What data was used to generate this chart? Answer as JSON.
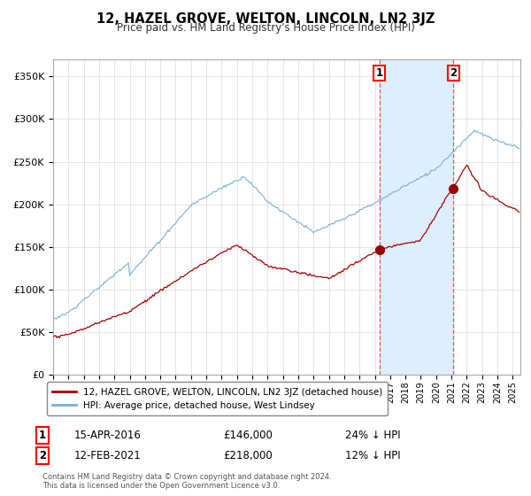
{
  "title": "12, HAZEL GROVE, WELTON, LINCOLN, LN2 3JZ",
  "subtitle": "Price paid vs. HM Land Registry's House Price Index (HPI)",
  "ylim": [
    0,
    370000
  ],
  "yticks": [
    0,
    50000,
    100000,
    150000,
    200000,
    250000,
    300000,
    350000
  ],
  "ytick_labels": [
    "£0",
    "£50K",
    "£100K",
    "£150K",
    "£200K",
    "£250K",
    "£300K",
    "£350K"
  ],
  "sale1_date_label": "15-APR-2016",
  "sale1_price": 146000,
  "sale1_price_label": "£146,000",
  "sale1_hpi_label": "24% ↓ HPI",
  "sale1_x": 2016.29,
  "sale2_date_label": "12-FEB-2021",
  "sale2_price": 218000,
  "sale2_price_label": "£218,000",
  "sale2_hpi_label": "12% ↓ HPI",
  "sale2_x": 2021.12,
  "line_property_color": "#aa0000",
  "line_hpi_color": "#7ab0d4",
  "grid_color": "#e0e0e0",
  "vline_color": "#ee5555",
  "shade_color": "#ddeeff",
  "marker_color": "#990000",
  "legend_label_property": "12, HAZEL GROVE, WELTON, LINCOLN, LN2 3JZ (detached house)",
  "legend_label_hpi": "HPI: Average price, detached house, West Lindsey",
  "footer1": "Contains HM Land Registry data © Crown copyright and database right 2024.",
  "footer2": "This data is licensed under the Open Government Licence v3.0.",
  "xmin": 1995,
  "xmax": 2025.5
}
